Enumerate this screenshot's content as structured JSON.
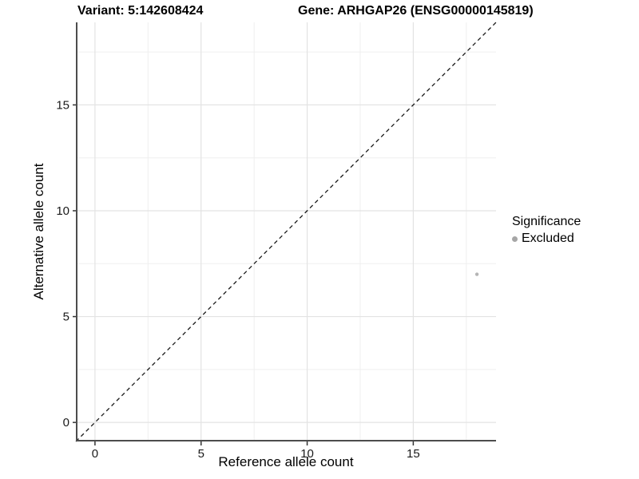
{
  "chart_data": {
    "type": "scatter",
    "title_left": "Variant: 5:142608424",
    "title_right": "Gene: ARHGAP26 (ENSG00000145819)",
    "xlabel": "Reference allele count",
    "ylabel": "Alternative allele count",
    "xlim": [
      -0.9,
      18.9
    ],
    "ylim": [
      -0.9,
      18.9
    ],
    "x_ticks": [
      0,
      5,
      10,
      15
    ],
    "y_ticks": [
      0,
      5,
      10,
      15
    ],
    "x_minor_ticks": [
      2.5,
      7.5,
      12.5,
      17.5
    ],
    "y_minor_ticks": [
      2.5,
      7.5,
      12.5,
      17.5
    ],
    "grid": "major+minor",
    "reference_line": {
      "type": "identity",
      "style": "dashed",
      "color": "#1a1a1a"
    },
    "series": [
      {
        "name": "Excluded",
        "marker": "circle",
        "color": "#b5b5b5",
        "points": [
          {
            "x": 18,
            "y": 7
          }
        ]
      }
    ],
    "legend": {
      "title": "Significance",
      "position": "right",
      "items": [
        {
          "label": "Excluded",
          "color": "#a6a6a6",
          "marker": "circle"
        }
      ]
    }
  },
  "colors": {
    "point_gray": "#b5b5b5",
    "legend_key_gray": "#a6a6a6",
    "axis_line": "#4d4d4d"
  }
}
